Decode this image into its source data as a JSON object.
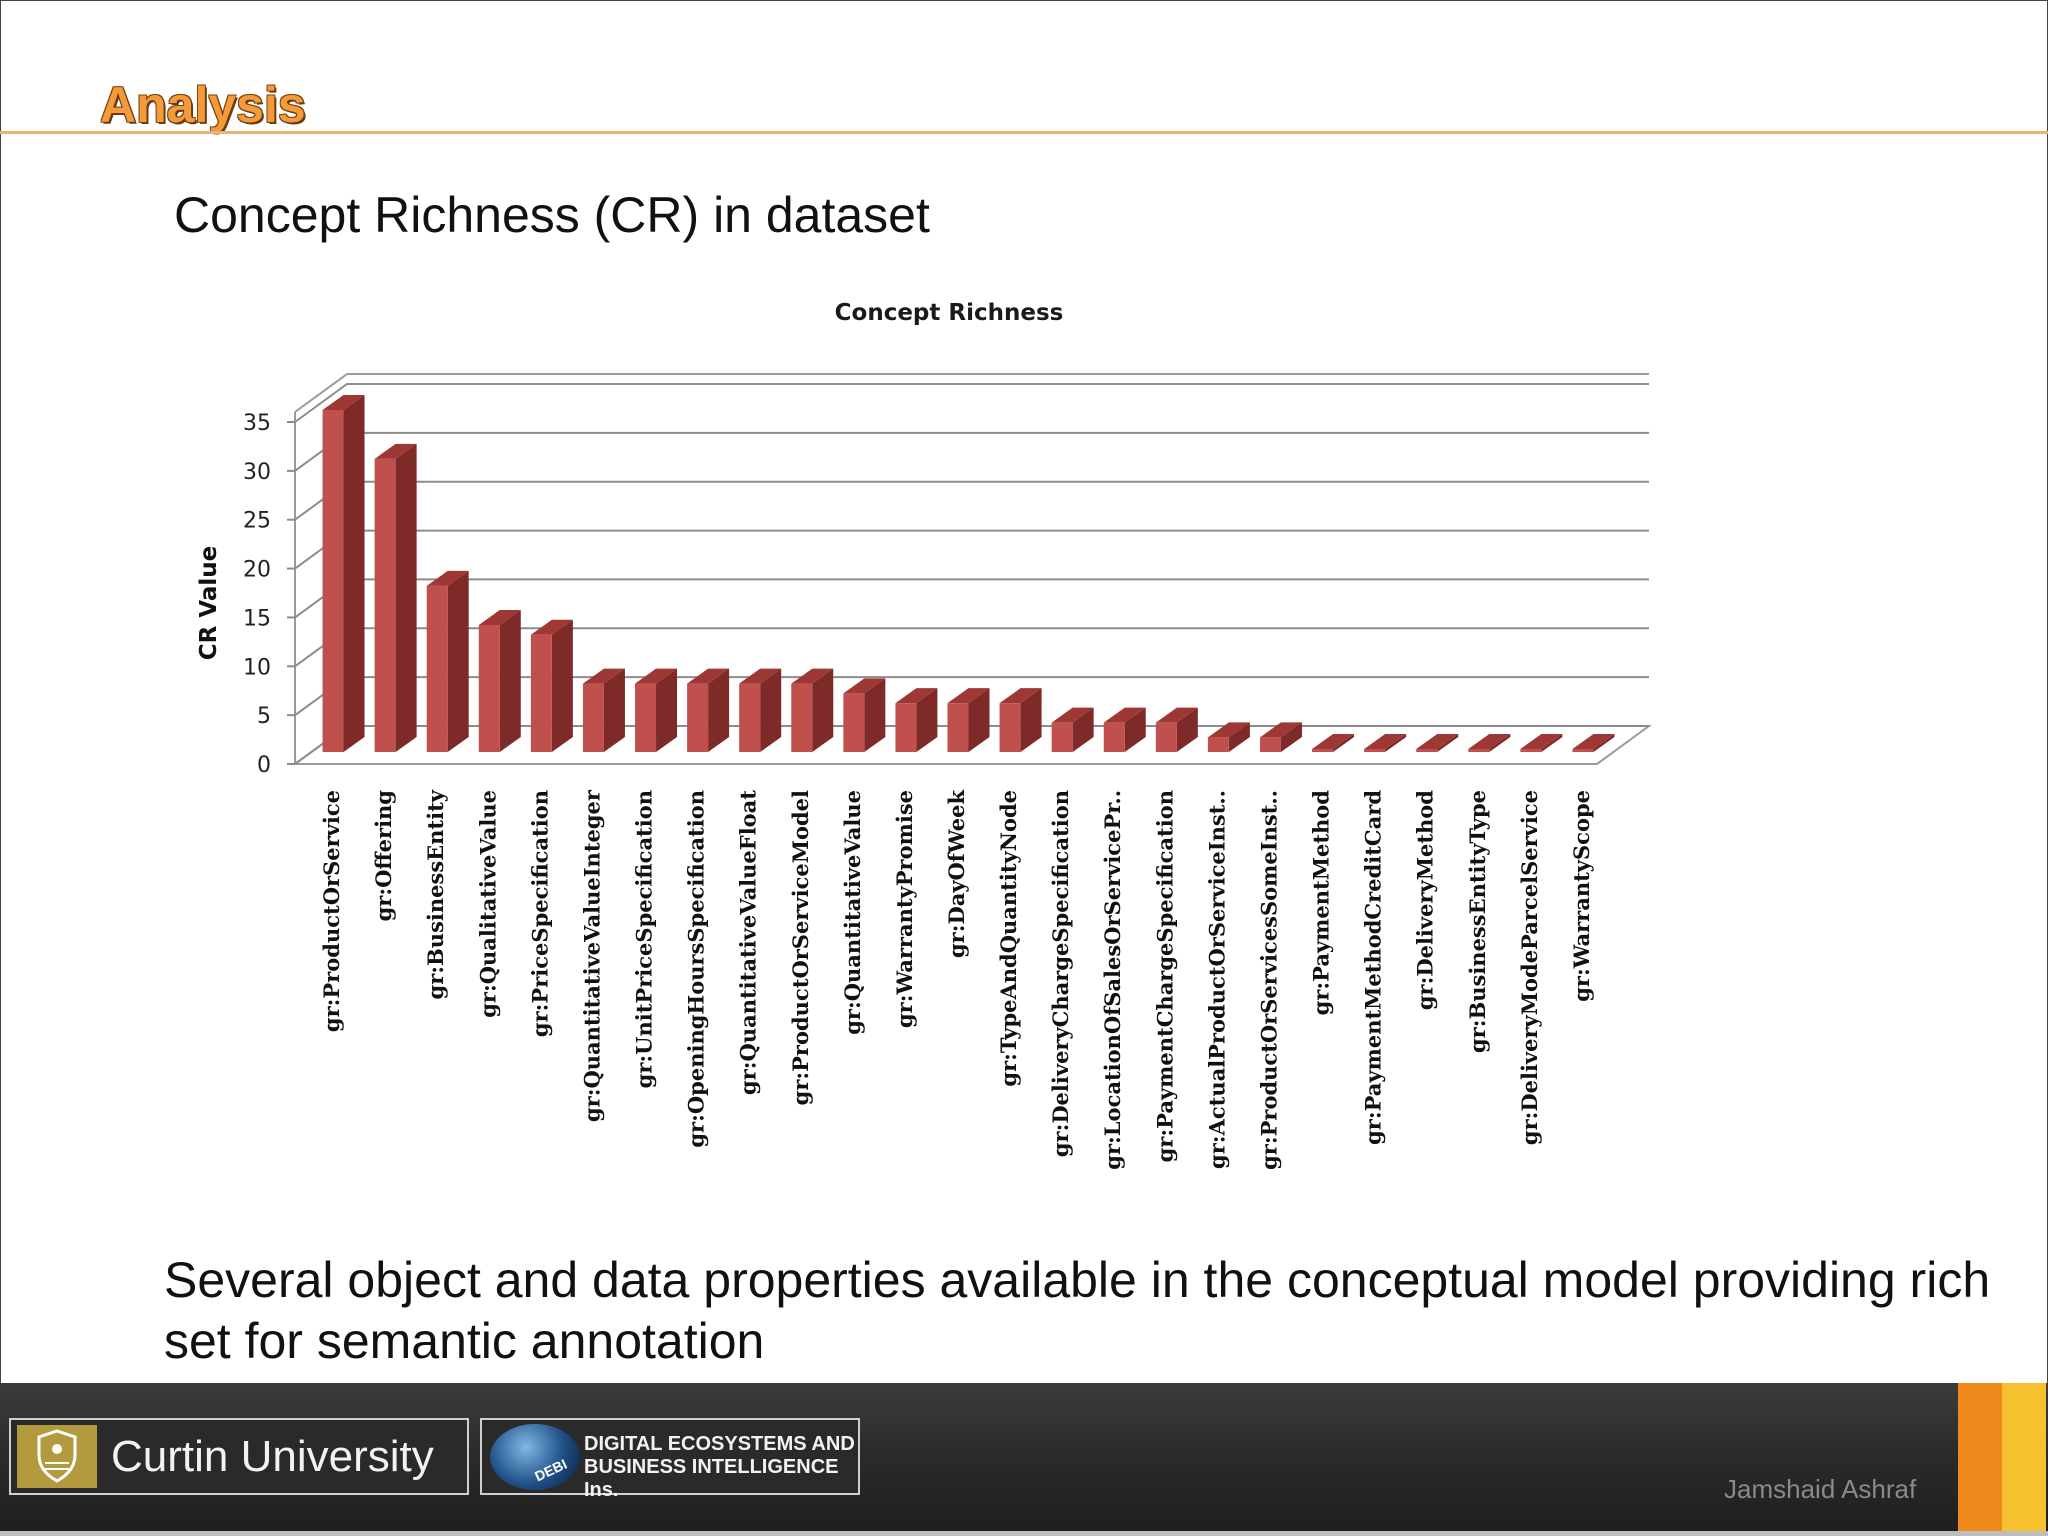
{
  "header": {
    "section_title": "Analysis"
  },
  "slide": {
    "heading": "Concept Richness (CR) in dataset",
    "footer_text": "Several object and data properties available in the conceptual model providing rich set for semantic annotation"
  },
  "branding": {
    "university": "Curtin University",
    "lab_line1": "DIGITAL ECOSYSTEMS AND",
    "lab_line2": "BUSINESS INTELLIGENCE Ins.",
    "lab_globe": "DEBI",
    "author": "Jamshaid Ashraf"
  },
  "colors": {
    "bar_front": "#C0504D",
    "bar_side": "#7E2A28",
    "bar_top": "#9E3835",
    "accent": "#F39A3A"
  },
  "chart_data": {
    "type": "bar",
    "title": "Concept Richness",
    "ylabel": "CR Value",
    "xlabel": "",
    "ylim": [
      0,
      35
    ],
    "yticks": [
      0,
      5,
      10,
      15,
      20,
      25,
      30,
      35
    ],
    "grid": true,
    "style": "3d-column",
    "categories": [
      "gr:ProductOrService",
      "gr:Offering",
      "gr:BusinessEntity",
      "gr:QualitativeValue",
      "gr:PriceSpecification",
      "gr:QuantitativeValueInteger",
      "gr:UnitPriceSpecification",
      "gr:OpeningHoursSpecification",
      "gr:QuantitativeValueFloat",
      "gr:ProductOrServiceModel",
      "gr:QuantitativeValue",
      "gr:WarrantyPromise",
      "gr:DayOfWeek",
      "gr:TypeAndQuantityNode",
      "gr:DeliveryChargeSpecification",
      "gr:LocationOfSalesOrServicePr..",
      "gr:PaymentChargeSpecification",
      "gr:ActualProductOrServiceInst..",
      "gr:ProductOrServicesSomeInst..",
      "gr:PaymentMethod",
      "gr:PaymentMethodCreditCard",
      "gr:DeliveryMethod",
      "gr:BusinessEntityType",
      "gr:DeliveryModeParcelService",
      "gr:WarrantyScope"
    ],
    "values": [
      35,
      30,
      17,
      13,
      12,
      7,
      7,
      7,
      7,
      7,
      6,
      5,
      5,
      5,
      3,
      3,
      3,
      1.5,
      1.5,
      0,
      0,
      0,
      0,
      0,
      0
    ]
  }
}
